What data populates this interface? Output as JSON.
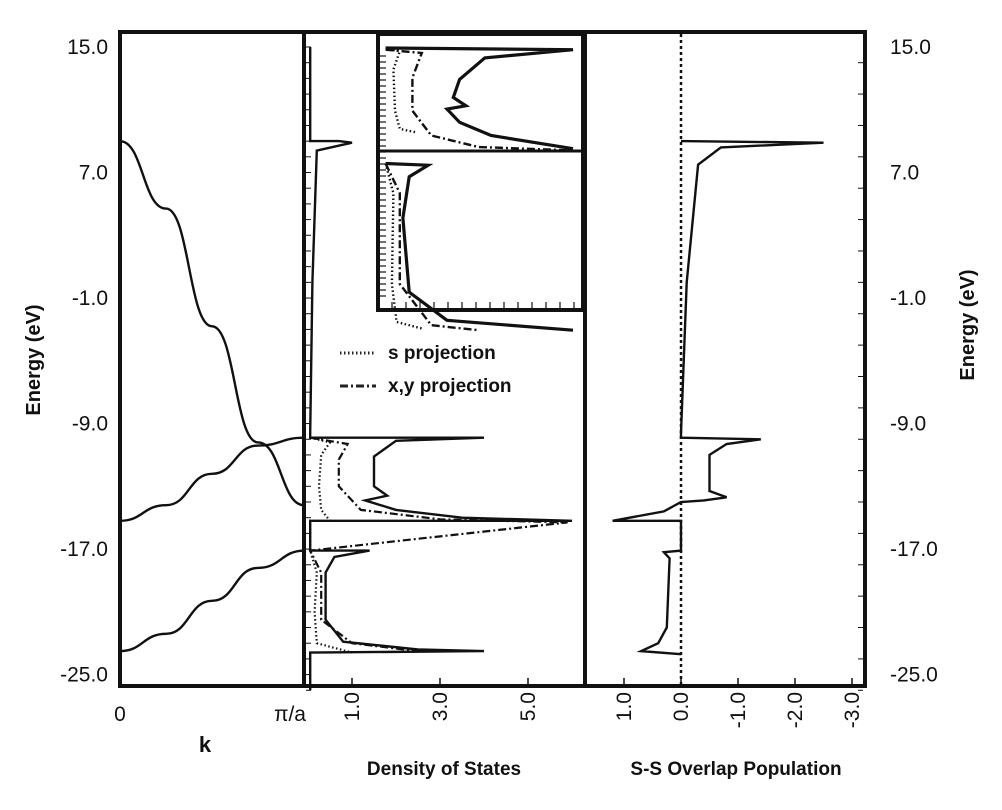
{
  "chart_data": [
    {
      "panel": "band-structure",
      "type": "line",
      "xlabel": "k",
      "ylabel": "Energy (eV)",
      "ylim": [
        -26.0,
        16.0
      ],
      "x_tick_labels": [
        "0",
        "π/a"
      ],
      "y_ticks": [
        15.0,
        7.0,
        -1.0,
        -9.0,
        -17.0,
        -25.0
      ],
      "y_tick_labels": [
        "15.0",
        "7.0",
        "-1.0",
        "-9.0",
        "-17.0",
        "-25.0"
      ],
      "series": [
        {
          "x": [
            0,
            0.25,
            0.5,
            0.75,
            1.0
          ],
          "y": [
            -23.5,
            -22.4,
            -20.3,
            -18.2,
            -17.1
          ]
        },
        {
          "x": [
            0,
            0.25,
            0.5,
            0.75,
            1.0
          ],
          "y": [
            -15.2,
            -14.2,
            -12.2,
            -10.4,
            -9.9
          ]
        },
        {
          "x": [
            0,
            0.25,
            0.5,
            0.75,
            1.0
          ],
          "y": [
            9.0,
            4.7,
            -2.8,
            -10.2,
            -14.2
          ]
        }
      ]
    },
    {
      "panel": "density-of-states",
      "type": "line",
      "xlabel": "Density of States",
      "x_ticks": [
        1.0,
        3.0,
        5.0
      ],
      "x_tick_labels": [
        "1.0",
        "3.0",
        "5.0"
      ],
      "ylim": [
        -26.0,
        16.0
      ],
      "legend": {
        "position": "middle",
        "entries": [
          {
            "label": "s projection",
            "style": "dotted"
          },
          {
            "label": "x,y projection",
            "style": "dash-dot"
          }
        ]
      },
      "series": [
        {
          "style": "solid",
          "points": [
            [
              0.05,
              15.0
            ],
            [
              0.05,
              9.0
            ],
            [
              0.7,
              9.0
            ],
            [
              1.0,
              8.9
            ],
            [
              0.2,
              8.4
            ],
            [
              0.1,
              0
            ],
            [
              0.05,
              -9.6
            ],
            [
              0.05,
              -9.9
            ],
            [
              4.0,
              -9.9
            ],
            [
              2.0,
              -10.1
            ],
            [
              1.5,
              -11.1
            ],
            [
              1.5,
              -13.0
            ],
            [
              1.8,
              -13.6
            ],
            [
              1.3,
              -13.9
            ],
            [
              2.0,
              -14.5
            ],
            [
              3.5,
              -15.0
            ],
            [
              6.0,
              -15.2
            ],
            [
              0.05,
              -15.2
            ],
            [
              0.05,
              -17.1
            ],
            [
              1.4,
              -17.1
            ],
            [
              0.6,
              -17.5
            ],
            [
              0.4,
              -18.5
            ],
            [
              0.4,
              -21.5
            ],
            [
              0.8,
              -22.9
            ],
            [
              2.5,
              -23.4
            ],
            [
              4.0,
              -23.5
            ],
            [
              0.05,
              -23.6
            ],
            [
              0.05,
              -26.0
            ]
          ]
        },
        {
          "name": "s projection",
          "style": "dotted",
          "points": [
            [
              0.05,
              -9.9
            ],
            [
              0.5,
              -10.2
            ],
            [
              0.3,
              -11.0
            ],
            [
              0.25,
              -13.0
            ],
            [
              0.3,
              -14.5
            ],
            [
              0.5,
              -15.2
            ],
            [
              0.05,
              -15.2
            ],
            [
              0.05,
              -17.1
            ],
            [
              0.2,
              -18.5
            ],
            [
              0.15,
              -21.0
            ],
            [
              0.2,
              -23.0
            ],
            [
              1.0,
              -23.6
            ]
          ]
        },
        {
          "name": "x,y projection",
          "style": "dash-dot",
          "points": [
            [
              0.05,
              -9.9
            ],
            [
              0.9,
              -10.3
            ],
            [
              0.7,
              -11.3
            ],
            [
              0.7,
              -13.0
            ],
            [
              1.2,
              -14.5
            ],
            [
              3.0,
              -15.1
            ],
            [
              5.9,
              -15.3
            ],
            [
              0.05,
              -17.1
            ],
            [
              0.3,
              -18.5
            ],
            [
              0.3,
              -21.5
            ],
            [
              1.0,
              -23.0
            ],
            [
              2.5,
              -23.5
            ]
          ]
        }
      ]
    },
    {
      "panel": "overlap-population",
      "type": "line",
      "xlabel": "S-S Overlap Population",
      "ylabel": "Energy (eV)",
      "xlim": [
        1.5,
        -3.2
      ],
      "x_ticks": [
        1.0,
        0.0,
        -1.0,
        -2.0,
        -3.0
      ],
      "x_tick_labels": [
        "1.0",
        "0.0",
        "-1.0",
        "-2.0",
        "-3.0"
      ],
      "y_ticks": [
        15.0,
        7.0,
        -1.0,
        -9.0,
        -17.0,
        -25.0
      ],
      "y_tick_labels": [
        "15.0",
        "7.0",
        "-1.0",
        "-9.0",
        "-17.0",
        "-25.0"
      ],
      "zero_line": "dotted",
      "series": [
        {
          "style": "solid",
          "points": [
            [
              0,
              9.0
            ],
            [
              -2.5,
              8.9
            ],
            [
              -0.7,
              8.6
            ],
            [
              -0.3,
              7.5
            ],
            [
              -0.1,
              0
            ],
            [
              0,
              -9.6
            ],
            [
              0,
              -9.9
            ],
            [
              -1.4,
              -10.0
            ],
            [
              -0.8,
              -10.3
            ],
            [
              -0.5,
              -11.0
            ],
            [
              -0.5,
              -13.3
            ],
            [
              -0.8,
              -13.7
            ],
            [
              -0.4,
              -13.9
            ],
            [
              0,
              -14.0
            ],
            [
              0.3,
              -14.6
            ],
            [
              1.2,
              -15.2
            ],
            [
              0,
              -15.2
            ],
            [
              0,
              -17.1
            ],
            [
              0.3,
              -17.2
            ],
            [
              0.2,
              -17.6
            ],
            [
              0.25,
              -22.0
            ],
            [
              0.4,
              -23.0
            ],
            [
              0.7,
              -23.5
            ],
            [
              0,
              -23.7
            ]
          ]
        }
      ]
    }
  ],
  "inset": {
    "description_free": true,
    "s_proj_top": [
      [
        0.05,
        15.3
      ],
      [
        0.5,
        15.1
      ],
      [
        0.3,
        14.0
      ],
      [
        0.35,
        11.5
      ],
      [
        0.5,
        10.4
      ],
      [
        1.0,
        10.2
      ]
    ],
    "xy_proj_top": [
      [
        0.05,
        15.2
      ],
      [
        1.2,
        15.0
      ],
      [
        0.9,
        13.5
      ],
      [
        0.9,
        11.5
      ],
      [
        1.5,
        10.0
      ],
      [
        3.0,
        9.3
      ],
      [
        5.9,
        9.1
      ]
    ],
    "solid_top": [
      [
        0.05,
        15.3
      ],
      [
        6.0,
        15.2
      ],
      [
        3.2,
        14.7
      ],
      [
        2.4,
        13.4
      ],
      [
        2.2,
        12.3
      ],
      [
        2.6,
        11.8
      ],
      [
        2.0,
        11.6
      ],
      [
        2.4,
        10.8
      ],
      [
        3.4,
        10.0
      ],
      [
        6.0,
        9.2
      ]
    ],
    "s_proj_bot": [
      [
        0.05,
        8.3
      ],
      [
        0.3,
        6.5
      ],
      [
        0.25,
        1.0
      ],
      [
        0.4,
        -1.3
      ],
      [
        1.2,
        -1.7
      ]
    ],
    "xy_proj_bot": [
      [
        0.05,
        8.3
      ],
      [
        0.5,
        6.5
      ],
      [
        0.5,
        1.0
      ],
      [
        1.5,
        -1.5
      ],
      [
        3.0,
        -1.8
      ]
    ],
    "solid_bot": [
      [
        0.05,
        8.3
      ],
      [
        1.4,
        8.2
      ],
      [
        0.8,
        7.5
      ],
      [
        0.6,
        5.0
      ],
      [
        0.8,
        0.5
      ],
      [
        2.0,
        -1.2
      ],
      [
        6.0,
        -1.8
      ]
    ]
  }
}
